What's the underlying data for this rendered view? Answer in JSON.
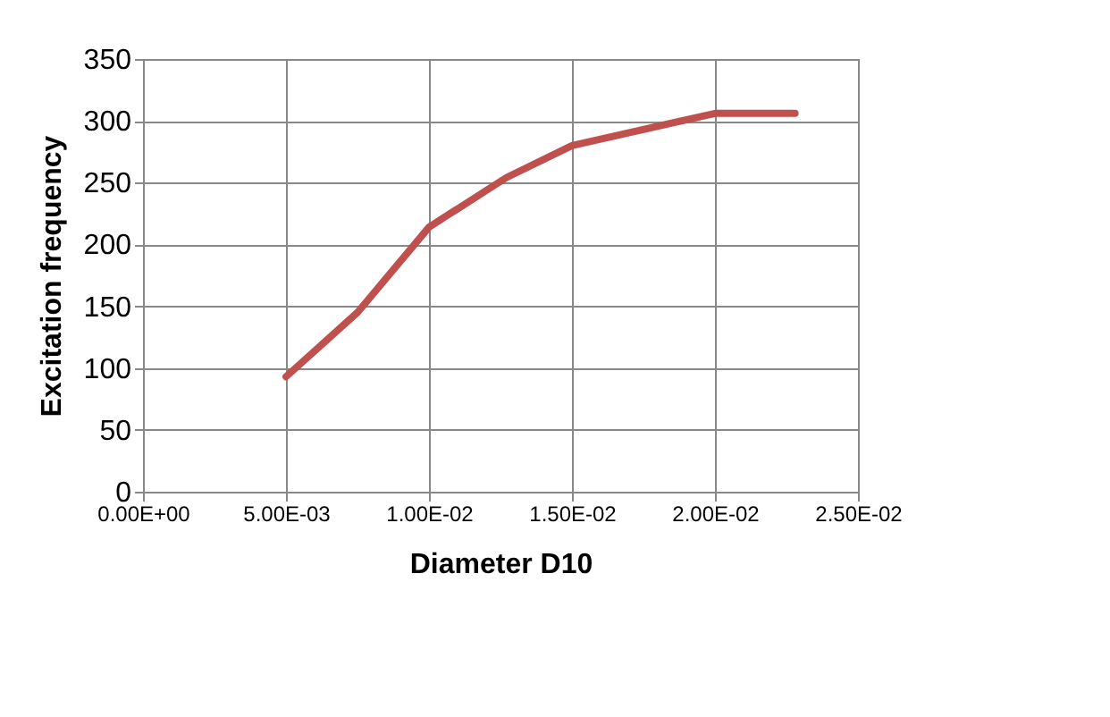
{
  "chart_data": {
    "type": "line",
    "xlabel": "Diameter  D10",
    "ylabel": "Excitation frequency",
    "x": [
      0.005,
      0.0075,
      0.01,
      0.0127,
      0.015,
      0.02,
      0.0228
    ],
    "series": [
      {
        "color": "#c0504d",
        "values": [
          93,
          145,
          214,
          254,
          280,
          306,
          306
        ]
      }
    ],
    "xlim": [
      0,
      0.025
    ],
    "xticks": [
      {
        "value": 0,
        "label": "0.00E+00"
      },
      {
        "value": 0.005,
        "label": "5.00E-03"
      },
      {
        "value": 0.01,
        "label": "1.00E-02"
      },
      {
        "value": 0.015,
        "label": "1.50E-02"
      },
      {
        "value": 0.02,
        "label": "2.00E-02"
      },
      {
        "value": 0.025,
        "label": "2.50E-02"
      }
    ],
    "ylim": [
      0,
      350
    ],
    "yticks": [
      0,
      50,
      100,
      150,
      200,
      250,
      300,
      350
    ],
    "grid": true,
    "legend": false,
    "marker": "none",
    "line_style": "solid"
  }
}
